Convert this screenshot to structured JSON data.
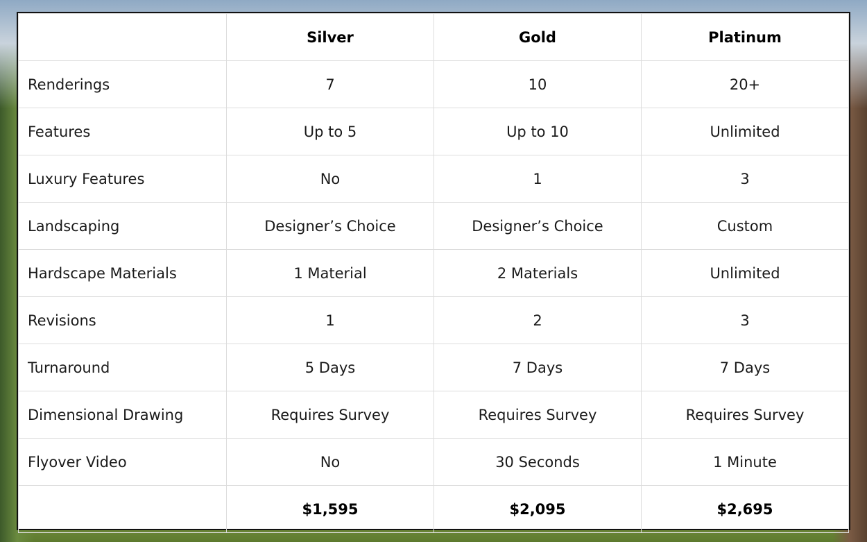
{
  "table": {
    "header": [
      "Silver",
      "Gold",
      "Platinum"
    ],
    "rows": [
      [
        "Renderings",
        "7",
        "10",
        "20+"
      ],
      [
        "Features",
        "Up to 5",
        "Up to 10",
        "Unlimited"
      ],
      [
        "Luxury Features",
        "No",
        "1",
        "3"
      ],
      [
        "Landscaping",
        "Designer’s Choice",
        "Designer’s Choice",
        "Custom"
      ],
      [
        "Hardscape Materials",
        "1 Material",
        "2 Materials",
        "Unlimited"
      ],
      [
        "Revisions",
        "1",
        "2",
        "3"
      ],
      [
        "Turnaround",
        "5 Days",
        "7 Days",
        "7 Days"
      ],
      [
        "Dimensional Drawing",
        "Requires Survey",
        "Requires Survey",
        "Requires Survey"
      ],
      [
        "Flyover Video",
        "No",
        "30 Seconds",
        "1 Minute"
      ]
    ],
    "prices": [
      "$1,595",
      "$2,095",
      "$2,695"
    ]
  }
}
